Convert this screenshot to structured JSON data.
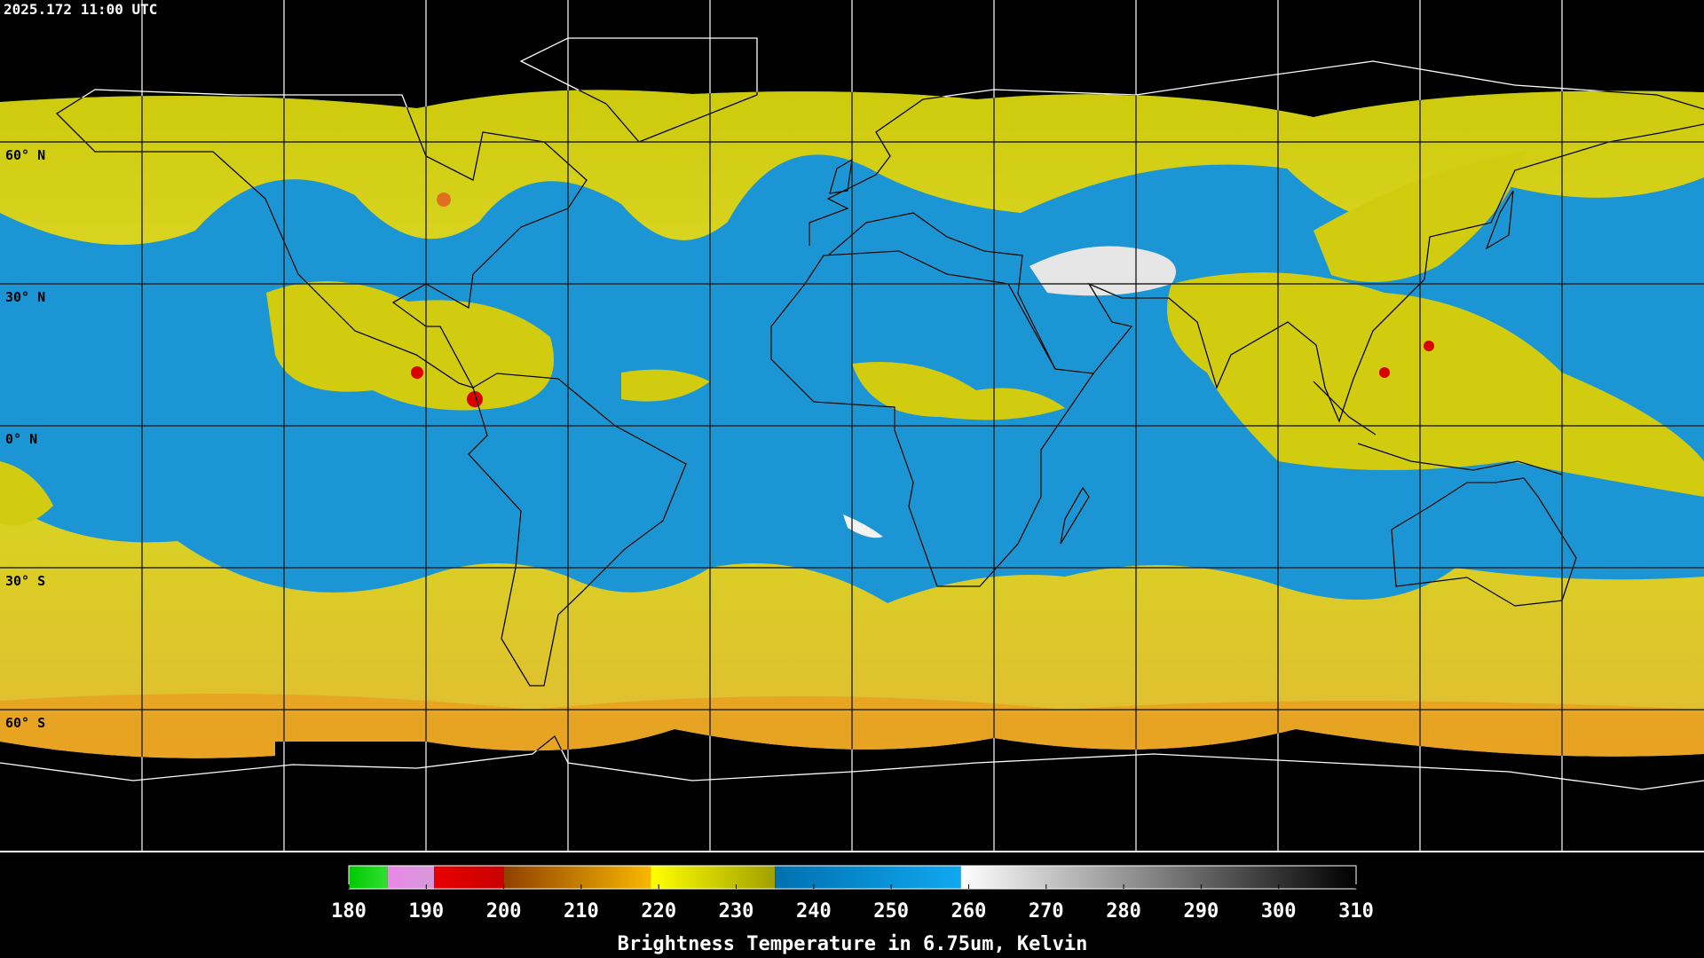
{
  "timestamp": "2025.172 11:00 UTC",
  "latitude_labels": [
    "60° N",
    "30° N",
    "0° N",
    "30° S",
    "60° S"
  ],
  "colorbar": {
    "title": "Brightness Temperature in 6.75um, Kelvin",
    "range": [
      180,
      310
    ],
    "ticks": [
      180,
      190,
      200,
      210,
      220,
      230,
      240,
      250,
      260,
      270,
      280,
      290,
      300,
      310
    ],
    "segments": [
      {
        "from": 180,
        "to": 185,
        "colors": [
          "#00c800",
          "#30e030"
        ]
      },
      {
        "from": 185,
        "to": 191,
        "colors": [
          "#e888e8",
          "#d898d8"
        ]
      },
      {
        "from": 191,
        "to": 200,
        "colors": [
          "#e80000",
          "#c80000"
        ]
      },
      {
        "from": 200,
        "to": 219,
        "colors": [
          "#904000",
          "#f8b800"
        ]
      },
      {
        "from": 219,
        "to": 235,
        "colors": [
          "#ffff00",
          "#a0a000"
        ]
      },
      {
        "from": 235,
        "to": 259,
        "colors": [
          "#0070b0",
          "#10a8f0"
        ]
      },
      {
        "from": 259,
        "to": 310,
        "colors": [
          "#ffffff",
          "#000000"
        ]
      }
    ]
  }
}
